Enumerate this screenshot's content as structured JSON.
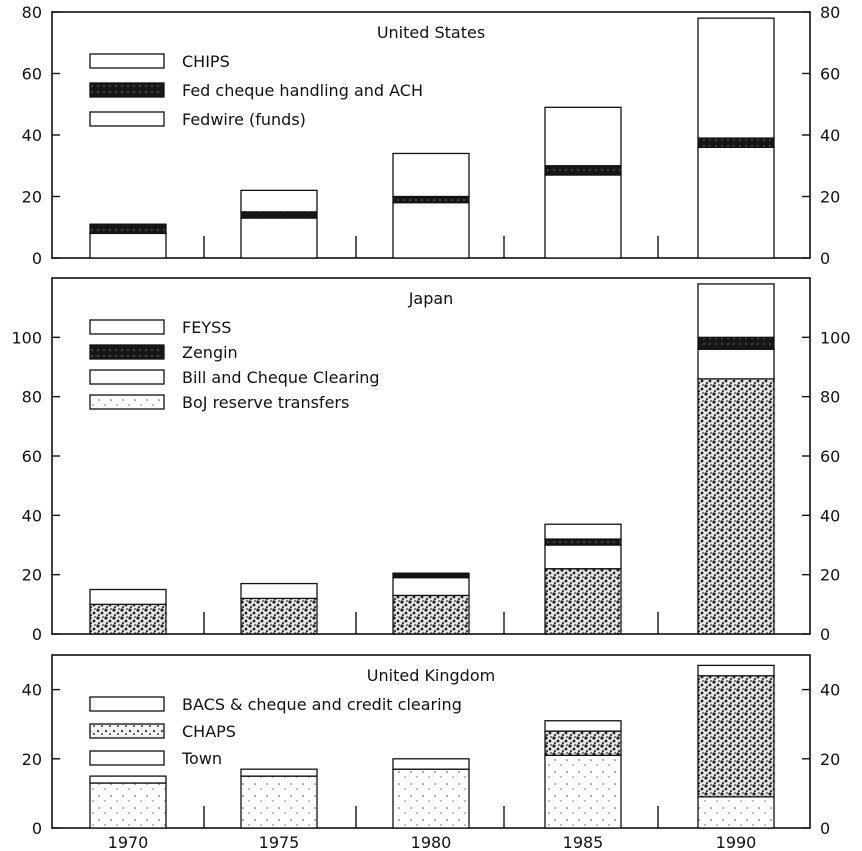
{
  "chart_data": [
    {
      "type": "bar",
      "stacked": true,
      "title": "United States",
      "categories": [
        "1970",
        "1975",
        "1980",
        "1985",
        "1990"
      ],
      "ylim": [
        0,
        80
      ],
      "yticks": [
        0,
        20,
        40,
        60,
        80
      ],
      "legend_placement": "top-left",
      "series": [
        {
          "name": "Fedwire (funds)",
          "values": [
            8,
            13,
            18,
            27,
            36
          ]
        },
        {
          "name": "Fed cheque handling and ACH",
          "values": [
            3,
            2,
            2,
            3,
            3
          ]
        },
        {
          "name": "CHIPS",
          "values": [
            0,
            7,
            14,
            19,
            39
          ]
        }
      ],
      "legend_order": [
        "CHIPS",
        "Fed cheque handling and ACH",
        "Fedwire (funds)"
      ]
    },
    {
      "type": "bar",
      "stacked": true,
      "title": "Japan",
      "categories": [
        "1970",
        "1975",
        "1980",
        "1985",
        "1990"
      ],
      "ylim": [
        0,
        120
      ],
      "yticks": [
        0,
        20,
        40,
        60,
        80,
        100
      ],
      "legend_placement": "top-left",
      "series": [
        {
          "name": "BoJ reserve transfers",
          "values": [
            10,
            12,
            13,
            22,
            86
          ]
        },
        {
          "name": "Bill and Cheque Clearing",
          "values": [
            5,
            5,
            6,
            8,
            10
          ]
        },
        {
          "name": "Zengin",
          "values": [
            0,
            0,
            1.5,
            2,
            4
          ]
        },
        {
          "name": "FEYSS",
          "values": [
            0,
            0,
            0,
            5,
            18
          ]
        }
      ],
      "legend_order": [
        "FEYSS",
        "Zengin",
        "Bill and Cheque Clearing",
        "BoJ reserve transfers"
      ]
    },
    {
      "type": "bar",
      "stacked": true,
      "title": "United Kingdom",
      "categories": [
        "1970",
        "1975",
        "1980",
        "1985",
        "1990"
      ],
      "ylim": [
        0,
        50
      ],
      "yticks": [
        0,
        20,
        40
      ],
      "legend_placement": "top-left",
      "series": [
        {
          "name": "Town",
          "values": [
            13,
            15,
            17,
            21,
            9
          ]
        },
        {
          "name": "CHAPS",
          "values": [
            0,
            0,
            0,
            7,
            35
          ]
        },
        {
          "name": "BACS & cheque and credit clearing",
          "values": [
            2,
            2,
            3,
            3,
            3
          ]
        }
      ],
      "legend_order": [
        "BACS & cheque and credit clearing",
        "CHAPS",
        "Town"
      ]
    }
  ],
  "colors": {
    "ink": "#111111",
    "fill_white": "#ffffff",
    "fill_black": "#141414",
    "stipple_light": "#cfcfcf",
    "stipple_dense": "#333333"
  }
}
